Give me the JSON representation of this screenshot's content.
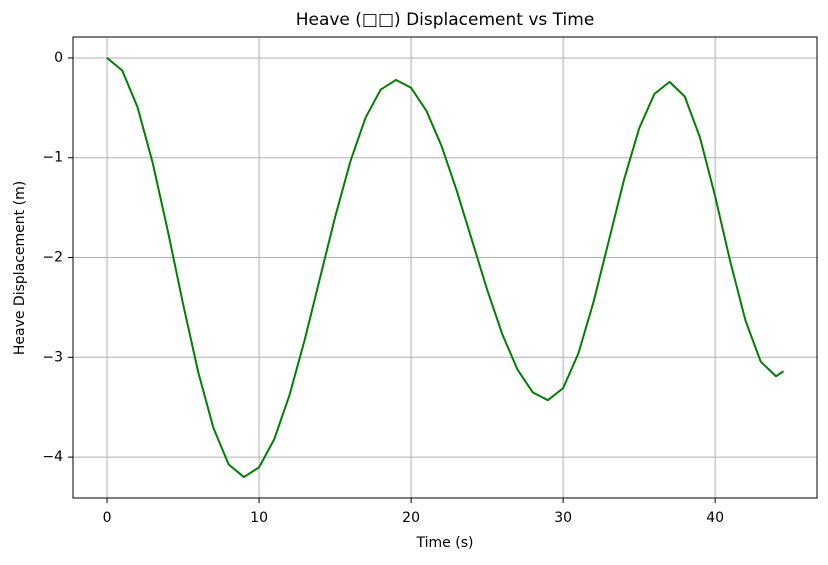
{
  "chart_data": {
    "type": "line",
    "title": "Heave (□□) Displacement vs Time",
    "x_label": "Time (s)",
    "y_label": "Heave Displacement (m)",
    "x": [
      0,
      1,
      2,
      3,
      4,
      5,
      6,
      7,
      8,
      9,
      10,
      11,
      12,
      13,
      14,
      15,
      16,
      17,
      18,
      19,
      20,
      21,
      22,
      23,
      24,
      25,
      26,
      27,
      28,
      29,
      30,
      31,
      32,
      33,
      34,
      35,
      36,
      37,
      38,
      39,
      40,
      41,
      42,
      43,
      44,
      44.5
    ],
    "series": [
      {
        "name": "Heave",
        "color": "#008000",
        "values": [
          0,
          -0.126,
          -0.491,
          -1.05,
          -1.735,
          -2.465,
          -3.15,
          -3.709,
          -4.074,
          -4.2,
          -4.103,
          -3.82,
          -3.38,
          -2.825,
          -2.21,
          -1.595,
          -1.04,
          -0.6,
          -0.317,
          -0.22,
          -0.299,
          -0.527,
          -0.881,
          -1.329,
          -1.825,
          -2.321,
          -2.769,
          -3.123,
          -3.351,
          -3.43,
          -3.309,
          -2.963,
          -2.446,
          -1.835,
          -1.224,
          -0.707,
          -0.361,
          -0.24,
          -0.386,
          -0.796,
          -1.386,
          -2.044,
          -2.634,
          -3.044,
          -3.19,
          -3.14
        ]
      }
    ],
    "xlim": [
      -2.24,
      46.7
    ],
    "ylim": [
      -4.41,
      0.21
    ],
    "xticks": [
      0,
      10,
      20,
      30,
      40
    ],
    "yticks": [
      0,
      {
        "value": -1,
        "label": "−1"
      },
      {
        "value": -2,
        "label": "−2"
      },
      {
        "value": -3,
        "label": "−3"
      },
      {
        "value": -4,
        "label": "−4"
      }
    ],
    "grid": true
  }
}
